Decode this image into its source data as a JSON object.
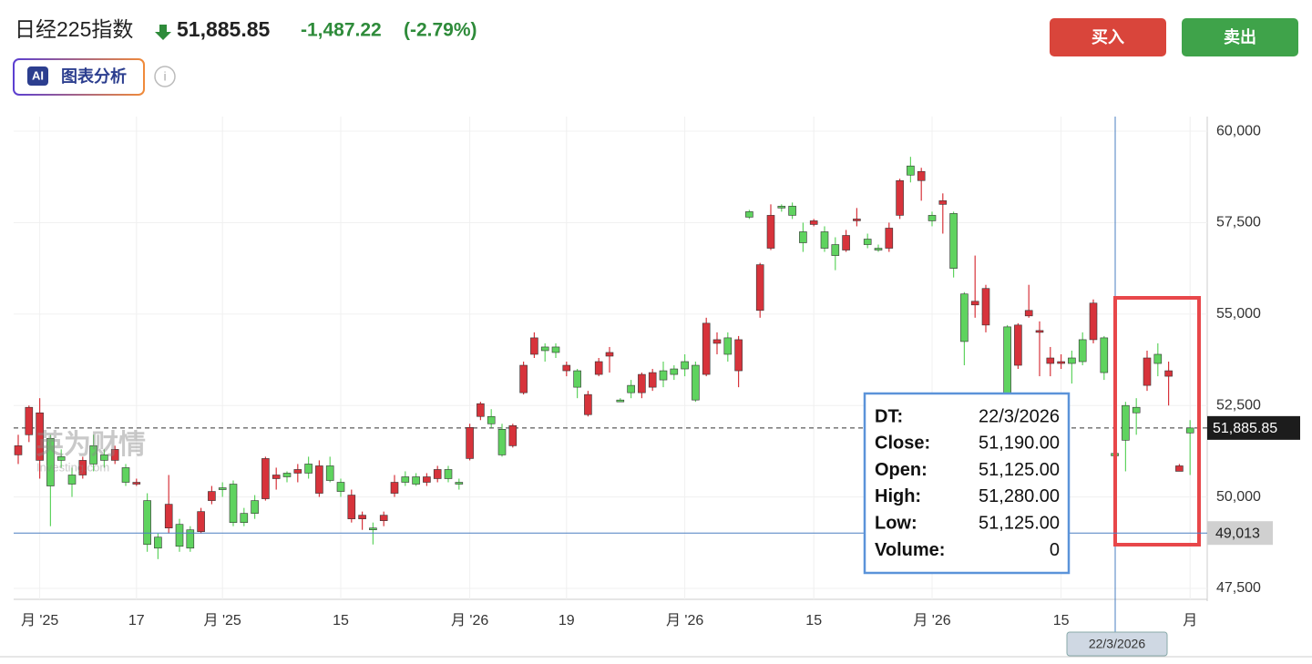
{
  "header": {
    "title": "日经225指数",
    "price": "51,885.85",
    "change": "-1,487.22",
    "change_pct": "(-2.79%)",
    "ai_badge": "AI",
    "ai_label": "图表分析",
    "buy": "买入",
    "sell": "卖出",
    "watermark": "英为财情",
    "watermark_sub": "Investing.com"
  },
  "tooltip": {
    "rows": [
      [
        "DT:",
        "22/3/2026"
      ],
      [
        "Close:",
        "51,190.00"
      ],
      [
        "Open:",
        "51,125.00"
      ],
      [
        "High:",
        "51,280.00"
      ],
      [
        "Low:",
        "51,125.00"
      ],
      [
        "Volume:",
        "0"
      ]
    ],
    "date_label": "22/3/2026"
  },
  "chart_data": {
    "type": "candlestick",
    "up_color": "#5fd35f",
    "down_color": "#d7333b",
    "categories": [
      null,
      null,
      "月 '25",
      null,
      null,
      null,
      null,
      null,
      null,
      null,
      null,
      "17",
      null,
      null,
      null,
      null,
      null,
      null,
      null,
      "月 '25",
      null,
      null,
      null,
      null,
      null,
      null,
      null,
      null,
      null,
      null,
      "15",
      null,
      null,
      null,
      null,
      null,
      null,
      null,
      null,
      null,
      null,
      null,
      "月 '26",
      null,
      null,
      null,
      null,
      null,
      null,
      null,
      null,
      "19",
      null,
      null,
      null,
      null,
      null,
      null,
      null,
      null,
      null,
      null,
      "月 '26",
      null,
      null,
      null,
      null,
      null,
      null,
      null,
      null,
      null,
      null,
      null,
      "15",
      null,
      null,
      null,
      null,
      null,
      null,
      null,
      null,
      null,
      null,
      "月 '26",
      null,
      null,
      null,
      null,
      null,
      null,
      null,
      null,
      null,
      null,
      null,
      "15",
      null,
      null,
      null,
      null,
      null,
      null,
      null,
      null,
      null,
      null,
      null,
      "月"
    ],
    "open": [
      51400,
      52450,
      52300,
      50300,
      51000,
      50350,
      51000,
      50900,
      51000,
      51300,
      50400,
      50400,
      48700,
      48600,
      49800,
      48650,
      48600,
      49600,
      50150,
      50200,
      49300,
      49300,
      49550,
      51050,
      50600,
      50550,
      50750,
      50650,
      50850,
      50450,
      50150,
      50050,
      49500,
      49100,
      49500,
      50400,
      50400,
      50350,
      50550,
      50750,
      50500,
      50350,
      51900,
      52550,
      52000,
      51150,
      51950,
      53600,
      54350,
      54000,
      53950,
      53600,
      53000,
      52800,
      53700,
      53950,
      52600,
      52850,
      53350,
      53400,
      53200,
      53350,
      53500,
      52650,
      54750,
      54300,
      53900,
      54300,
      57650,
      56350,
      57700,
      57900,
      57700,
      56950,
      57550,
      56800,
      56600,
      57150,
      57600,
      56900,
      56750,
      57350,
      58650,
      58800,
      58900,
      57550,
      58100,
      56250,
      54250,
      55350,
      55700,
      null,
      52650,
      54700,
      55100,
      54550,
      53800,
      53700,
      53650,
      53700,
      55300,
      53400,
      51125,
      51550,
      52300,
      53800,
      53650,
      53450,
      50850,
      51750
    ],
    "close": [
      51150,
      51700,
      51000,
      51600,
      51100,
      50600,
      50600,
      51400,
      51150,
      51000,
      50800,
      50350,
      49900,
      48900,
      49150,
      49250,
      49100,
      49050,
      49900,
      50250,
      50350,
      49550,
      49900,
      49950,
      50500,
      50650,
      50650,
      50900,
      50100,
      50850,
      50400,
      49400,
      49400,
      49150,
      49350,
      50100,
      50550,
      50550,
      50400,
      50500,
      50750,
      50400,
      51050,
      52200,
      52200,
      51850,
      51400,
      52850,
      53900,
      54100,
      54100,
      53450,
      53450,
      52250,
      53350,
      53850,
      52650,
      53050,
      52850,
      53000,
      53450,
      53500,
      53700,
      53600,
      53350,
      54200,
      54350,
      53450,
      57800,
      55100,
      56800,
      57950,
      57950,
      57250,
      57450,
      57250,
      56900,
      56750,
      57550,
      57050,
      56800,
      56800,
      57700,
      59050,
      58650,
      57700,
      58000,
      57750,
      55550,
      55250,
      54700,
      null,
      54650,
      53600,
      54950,
      54500,
      53650,
      53650,
      53800,
      54300,
      54300,
      54350,
      51190,
      52500,
      52450,
      53050,
      53900,
      53300,
      50700,
      51885.85
    ],
    "high": [
      51700,
      52500,
      52700,
      51700,
      51300,
      50800,
      51100,
      51700,
      51300,
      51400,
      50900,
      50500,
      50100,
      49000,
      50600,
      49400,
      49200,
      49700,
      50300,
      50400,
      50450,
      49700,
      50050,
      51100,
      50800,
      50700,
      50900,
      51100,
      51000,
      51100,
      50500,
      50200,
      49600,
      49300,
      49600,
      50600,
      50700,
      50650,
      50650,
      50850,
      50850,
      50500,
      52000,
      52600,
      52400,
      52000,
      52000,
      53700,
      54500,
      54200,
      54200,
      53700,
      53500,
      52900,
      53800,
      54100,
      52700,
      53200,
      53400,
      53500,
      53700,
      53600,
      53900,
      53700,
      54900,
      54500,
      54500,
      54400,
      57850,
      56400,
      58000,
      58000,
      58050,
      57500,
      57600,
      57400,
      57100,
      57300,
      57900,
      57200,
      56900,
      57500,
      58700,
      59300,
      59000,
      57800,
      58300,
      57800,
      55600,
      56600,
      55800,
      null,
      54700,
      54750,
      55800,
      54800,
      54100,
      53900,
      54000,
      54500,
      55400,
      54400,
      51280,
      52600,
      52700,
      54000,
      54200,
      53700,
      50900,
      52100
    ],
    "low": [
      50900,
      51500,
      50500,
      49200,
      50800,
      50000,
      50500,
      50700,
      50800,
      50900,
      50300,
      50300,
      48500,
      48300,
      49000,
      48500,
      48500,
      49000,
      49800,
      50000,
      49200,
      49200,
      49400,
      49900,
      50200,
      50400,
      50400,
      50500,
      50000,
      50400,
      50000,
      49300,
      49100,
      48700,
      49200,
      50000,
      50300,
      50300,
      50300,
      50400,
      50400,
      50200,
      51000,
      52100,
      51900,
      51100,
      51350,
      52800,
      53800,
      53700,
      53800,
      53300,
      52700,
      52200,
      53300,
      53400,
      52600,
      52700,
      52700,
      52900,
      53000,
      53200,
      53300,
      52600,
      53300,
      53900,
      53700,
      53000,
      57600,
      54900,
      56750,
      57800,
      57600,
      56700,
      57400,
      56700,
      56200,
      56700,
      57400,
      56800,
      56700,
      56700,
      57600,
      58600,
      58100,
      57400,
      57200,
      56000,
      53600,
      54900,
      54500,
      null,
      52500,
      53500,
      54900,
      53300,
      53300,
      53500,
      53100,
      53600,
      54200,
      53200,
      51125,
      50700,
      51700,
      52900,
      53300,
      52500,
      50700,
      50600
    ],
    "ylim": [
      47200,
      60400
    ],
    "yticks": [
      {
        "value": 47500,
        "label": "47,500"
      },
      {
        "value": 50000,
        "label": "50,000"
      },
      {
        "value": 52500,
        "label": "52,500"
      },
      {
        "value": 55000,
        "label": "55,000"
      },
      {
        "value": 57500,
        "label": "57,500"
      },
      {
        "value": 60000,
        "label": "60,000"
      }
    ],
    "last_price": {
      "value": 51885.85,
      "label": "51,885.85"
    },
    "crosshair_price": {
      "value": 49013,
      "label": "49,013"
    },
    "grid": true
  }
}
